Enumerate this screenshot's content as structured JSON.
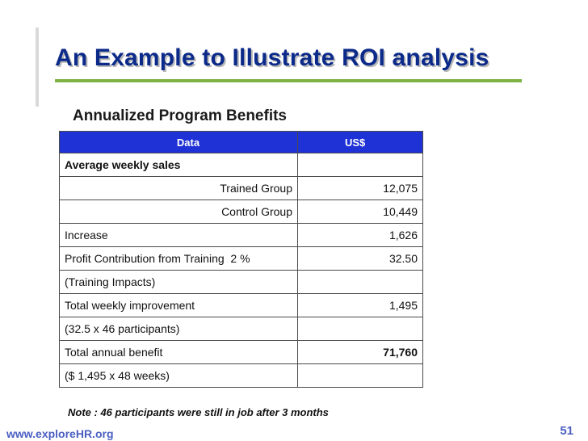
{
  "slide": {
    "title": "An Example to Illustrate ROI analysis",
    "subtitle": "Annualized Program Benefits",
    "note": "Note : 46 participants were still in job after 3 months",
    "footer_url": "www.exploreHR.org",
    "page_number": "51",
    "colors": {
      "title": "#0b2a8a",
      "header_bg": "#1f32d6",
      "accent_rule": "#7cb342",
      "footer": "#4a5fc1"
    }
  },
  "table": {
    "headers": [
      "Data",
      "US$"
    ],
    "rows": [
      {
        "label": "Average weekly sales",
        "value": ""
      },
      {
        "label": "Trained Group",
        "value": "12,075"
      },
      {
        "label": "Control Group",
        "value": "10,449"
      },
      {
        "label": "Increase",
        "value": "1,626"
      },
      {
        "label": "Profit Contribution from Training  2 %",
        "value": "32.50"
      },
      {
        "label": "(Training Impacts)",
        "value": ""
      },
      {
        "label": "Total weekly improvement",
        "value": "1,495"
      },
      {
        "label": "(32.5 x 46 participants)",
        "value": ""
      },
      {
        "label": "Total annual benefit",
        "value": "71,760"
      },
      {
        "label": "($ 1,495 x 48 weeks)",
        "value": ""
      }
    ]
  }
}
